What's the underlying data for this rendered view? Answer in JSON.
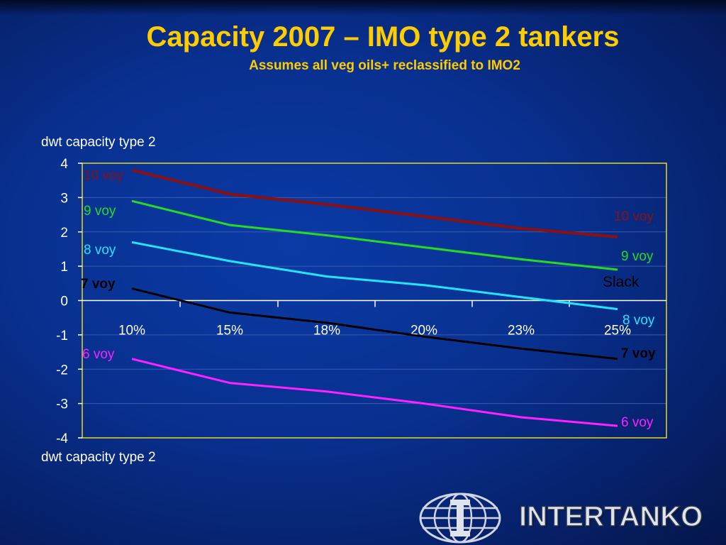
{
  "slide": {
    "title": "Capacity 2007 – IMO type 2 tankers",
    "subtitle": "Assumes all veg oils+ reclassified to IMO2",
    "brand": "INTERTANKO"
  },
  "chart_data": {
    "type": "line",
    "title": "",
    "ylabel_top": "dwt capacity type 2",
    "ylabel_bottom": "dwt capacity type 2",
    "categories": [
      "10%",
      "15%",
      "18%",
      "20%",
      "23%",
      "25%"
    ],
    "ylim": [
      -4,
      4
    ],
    "yticks": [
      "4",
      "3",
      "2",
      "1",
      "0",
      "-1",
      "-2",
      "-3",
      "-4"
    ],
    "grid": true,
    "annotation": "Slack",
    "series": [
      {
        "name": "10 voy",
        "color": "#8b1010",
        "values": [
          3.8,
          3.1,
          2.8,
          2.45,
          2.1,
          1.85
        ]
      },
      {
        "name": "9 voy",
        "color": "#22dd22",
        "values": [
          2.9,
          2.2,
          1.9,
          1.55,
          1.2,
          0.9
        ]
      },
      {
        "name": "8 voy",
        "color": "#22e6ff",
        "values": [
          1.7,
          1.15,
          0.7,
          0.45,
          0.1,
          -0.25
        ]
      },
      {
        "name": "7 voy",
        "color": "#000000",
        "values": [
          0.35,
          -0.35,
          -0.65,
          -1.05,
          -1.4,
          -1.7
        ]
      },
      {
        "name": "6 voy",
        "color": "#ff22ff",
        "values": [
          -1.7,
          -2.4,
          -2.65,
          -3.0,
          -3.4,
          -3.65
        ]
      }
    ]
  }
}
